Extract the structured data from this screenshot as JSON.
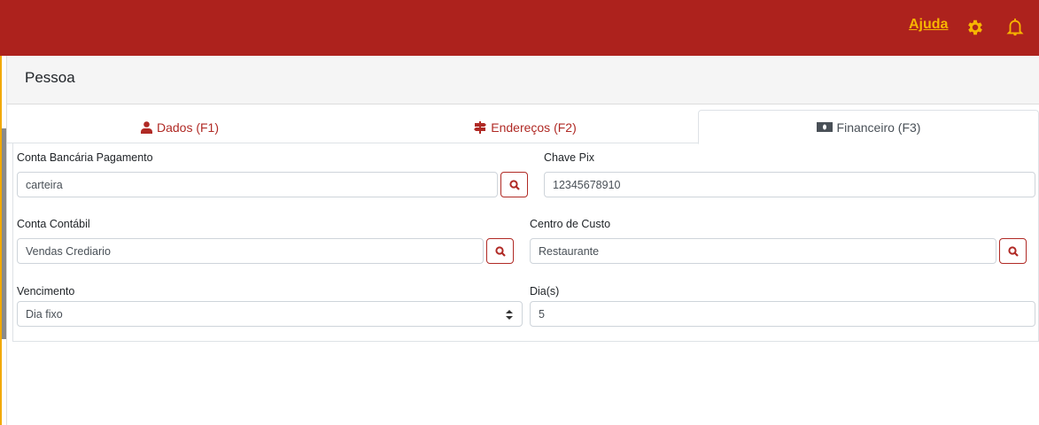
{
  "topbar": {
    "help_label": "Ajuda",
    "accent": "#f7b500",
    "background": "#ad221d"
  },
  "page": {
    "title": "Pessoa"
  },
  "tabs": [
    {
      "label": "Dados (F1)",
      "icon": "user-icon"
    },
    {
      "label": "Endereços (F2)",
      "icon": "signpost-icon"
    },
    {
      "label": "Financeiro (F3)",
      "icon": "money-bill-icon",
      "active": true
    }
  ],
  "form": {
    "conta_bancaria": {
      "label": "Conta Bancária Pagamento",
      "value": "carteira"
    },
    "chave_pix": {
      "label": "Chave Pix",
      "value": "12345678910"
    },
    "conta_contabil": {
      "label": "Conta Contábil",
      "value": "Vendas Crediario"
    },
    "centro_custo": {
      "label": "Centro de Custo",
      "value": "Restaurante"
    },
    "vencimento": {
      "label": "Vencimento",
      "value": "Dia fixo"
    },
    "dias": {
      "label": "Dia(s)",
      "value": "5"
    }
  }
}
